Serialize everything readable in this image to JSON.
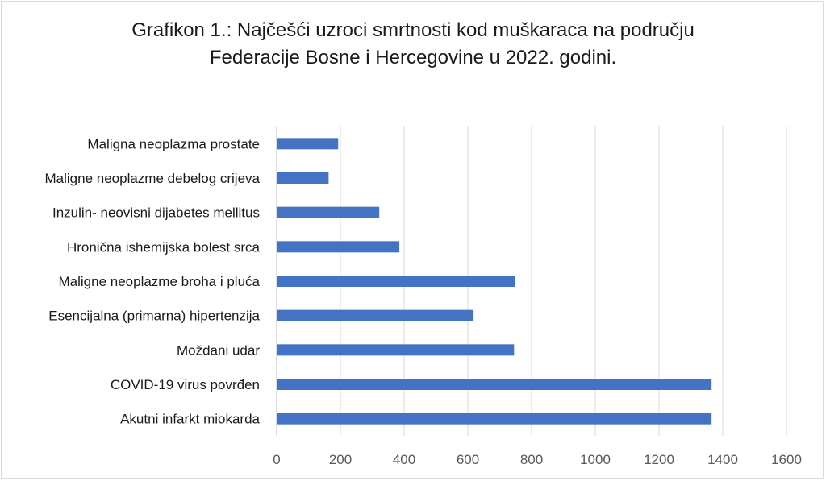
{
  "chart_data": {
    "type": "bar",
    "orientation": "horizontal",
    "title_lines": [
      "Grafikon 1.: Najčešći uzroci smrtnosti kod muškaraca na području",
      "Federacije Bosne i Hercegovine u 2022. godini."
    ],
    "categories": [
      "Maligna neoplazma prostate",
      "Maligne neoplazme debelog crijeva",
      "Inzulin- neovisni dijabetes mellitus",
      "Hronična ishemijska bolest srca",
      "Maligne neoplazme broha i pluća",
      "Esencijalna (primarna) hipertenzija",
      "Moždani udar",
      "COVID-19 virus povrđen",
      "Akutni infarkt miokarda"
    ],
    "values": [
      193,
      163,
      322,
      385,
      748,
      618,
      745,
      1365,
      1365
    ],
    "xlim": [
      0,
      1600
    ],
    "xticks": [
      "0",
      "200",
      "400",
      "600",
      "800",
      "1000",
      "1200",
      "1400",
      "1600"
    ],
    "xlabel": "",
    "ylabel": "",
    "grid": true,
    "legend": "none",
    "bar_color": "#4472c4",
    "grid_color": "#d9d9d9"
  }
}
